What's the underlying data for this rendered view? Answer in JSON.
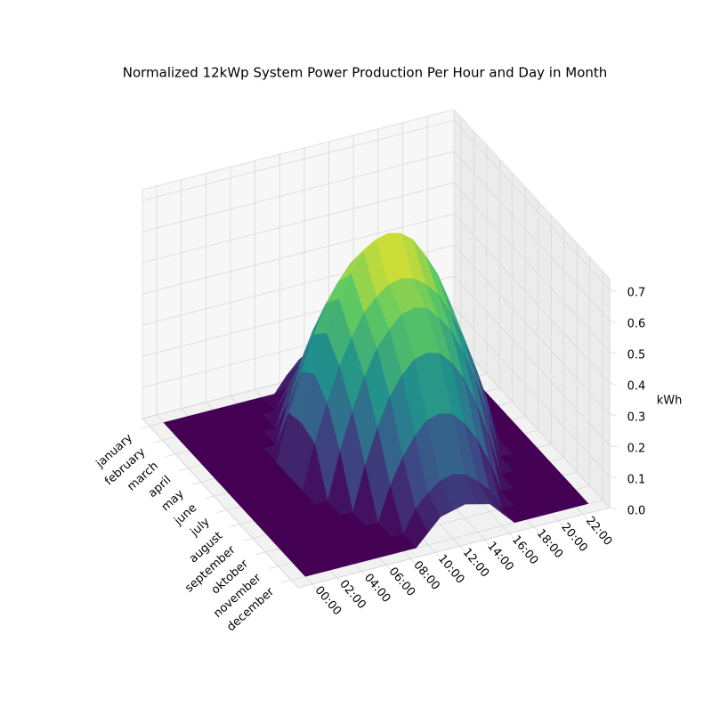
{
  "chart_data": {
    "type": "surface3d",
    "title": "Normalized 12kWp System Power Production Per Hour and Day in Month",
    "zlabel": "kWh",
    "categories": [
      "january",
      "february",
      "march",
      "april",
      "may",
      "june",
      "july",
      "august",
      "september",
      "oktober",
      "november",
      "december"
    ],
    "x": [
      0,
      1,
      2,
      3,
      4,
      5,
      6,
      7,
      8,
      9,
      10,
      11,
      12,
      13,
      14,
      15,
      16,
      17,
      18,
      19,
      20,
      21,
      22,
      23
    ],
    "xlim": [
      -1.15,
      24.15
    ],
    "xticks": [
      {
        "value": 0,
        "label": "00:00"
      },
      {
        "value": 2,
        "label": "02:00"
      },
      {
        "value": 4,
        "label": "04:00"
      },
      {
        "value": 6,
        "label": "06:00"
      },
      {
        "value": 8,
        "label": "08:00"
      },
      {
        "value": 10,
        "label": "10:00"
      },
      {
        "value": 12,
        "label": "12:00"
      },
      {
        "value": 14,
        "label": "14:00"
      },
      {
        "value": 16,
        "label": "16:00"
      },
      {
        "value": 18,
        "label": "18:00"
      },
      {
        "value": 20,
        "label": "20:00"
      },
      {
        "value": 22,
        "label": "22:00"
      }
    ],
    "zlim": [
      0,
      0.735
    ],
    "zticks": [
      {
        "value": 0,
        "label": "0.0"
      },
      {
        "value": 0.1,
        "label": "0.1"
      },
      {
        "value": 0.2,
        "label": "0.2"
      },
      {
        "value": 0.3,
        "label": "0.3"
      },
      {
        "value": 0.4,
        "label": "0.4"
      },
      {
        "value": 0.5,
        "label": "0.5"
      },
      {
        "value": 0.6,
        "label": "0.6"
      },
      {
        "value": 0.7,
        "label": "0.7"
      }
    ],
    "colormap": "viridis",
    "grid": true,
    "z": [
      [
        0,
        0,
        0,
        0,
        0,
        0,
        0,
        0,
        0,
        0,
        0.05,
        0.09,
        0.11,
        0.12,
        0.11,
        0.09,
        0.05,
        0,
        0,
        0,
        0,
        0,
        0,
        0
      ],
      [
        0,
        0,
        0,
        0,
        0,
        0,
        0,
        0,
        0,
        0.07,
        0.13,
        0.17,
        0.19,
        0.2,
        0.19,
        0.17,
        0.13,
        0.07,
        0,
        0,
        0,
        0,
        0,
        0
      ],
      [
        0,
        0,
        0,
        0,
        0,
        0,
        0,
        0,
        0.11,
        0.19,
        0.26,
        0.31,
        0.34,
        0.35,
        0.34,
        0.31,
        0.26,
        0.19,
        0.11,
        0,
        0,
        0,
        0,
        0
      ],
      [
        0,
        0,
        0,
        0,
        0,
        0,
        0,
        0.13,
        0.24,
        0.34,
        0.41,
        0.46,
        0.49,
        0.5,
        0.49,
        0.46,
        0.41,
        0.34,
        0.24,
        0.13,
        0,
        0,
        0,
        0
      ],
      [
        0,
        0,
        0,
        0,
        0,
        0,
        0.15,
        0.27,
        0.38,
        0.47,
        0.53,
        0.58,
        0.61,
        0.62,
        0.61,
        0.58,
        0.53,
        0.47,
        0.38,
        0.27,
        0.15,
        0,
        0,
        0
      ],
      [
        0,
        0,
        0,
        0,
        0,
        0,
        0.16,
        0.31,
        0.43,
        0.53,
        0.6,
        0.66,
        0.69,
        0.7,
        0.69,
        0.66,
        0.6,
        0.53,
        0.43,
        0.31,
        0.16,
        0,
        0,
        0
      ],
      [
        0,
        0,
        0,
        0,
        0,
        0,
        0.14,
        0.26,
        0.37,
        0.45,
        0.52,
        0.56,
        0.59,
        0.6,
        0.59,
        0.56,
        0.52,
        0.45,
        0.37,
        0.26,
        0.14,
        0,
        0,
        0
      ],
      [
        0,
        0,
        0,
        0,
        0,
        0,
        0,
        0.15,
        0.27,
        0.37,
        0.45,
        0.5,
        0.54,
        0.55,
        0.54,
        0.5,
        0.45,
        0.37,
        0.27,
        0.15,
        0,
        0,
        0,
        0
      ],
      [
        0,
        0,
        0,
        0,
        0,
        0,
        0,
        0,
        0.14,
        0.25,
        0.34,
        0.4,
        0.44,
        0.45,
        0.44,
        0.4,
        0.34,
        0.25,
        0.14,
        0,
        0,
        0,
        0,
        0
      ],
      [
        0,
        0,
        0,
        0,
        0,
        0,
        0,
        0,
        0,
        0.11,
        0.19,
        0.25,
        0.29,
        0.3,
        0.29,
        0.25,
        0.19,
        0.11,
        0,
        0,
        0,
        0,
        0,
        0
      ],
      [
        0,
        0,
        0,
        0,
        0,
        0,
        0,
        0,
        0,
        0,
        0.07,
        0.11,
        0.14,
        0.15,
        0.14,
        0.11,
        0.07,
        0,
        0,
        0,
        0,
        0,
        0,
        0
      ],
      [
        0,
        0,
        0,
        0,
        0,
        0,
        0,
        0,
        0,
        0,
        0.04,
        0.08,
        0.09,
        0.1,
        0.09,
        0.08,
        0.04,
        0,
        0,
        0,
        0,
        0,
        0,
        0
      ]
    ]
  }
}
